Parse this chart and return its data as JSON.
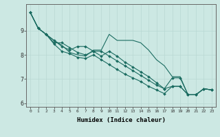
{
  "xlabel": "Humidex (Indice chaleur)",
  "background_color": "#cce8e3",
  "grid_color": "#b8d8d2",
  "line_color": "#1a6b60",
  "xlim": [
    -0.5,
    23.5
  ],
  "ylim": [
    5.85,
    10.1
  ],
  "yticks": [
    6,
    7,
    8,
    9
  ],
  "xticks": [
    0,
    1,
    2,
    3,
    4,
    5,
    6,
    7,
    8,
    9,
    10,
    11,
    12,
    13,
    14,
    15,
    16,
    17,
    18,
    19,
    20,
    21,
    22,
    23
  ],
  "lines": [
    {
      "y": [
        9.75,
        9.1,
        8.85,
        8.6,
        8.4,
        8.1,
        8.0,
        7.95,
        8.2,
        8.2,
        8.85,
        8.6,
        8.6,
        8.6,
        8.5,
        8.2,
        7.8,
        7.55,
        7.1,
        7.1,
        6.35,
        6.35,
        6.6,
        6.55
      ],
      "markers": false
    },
    {
      "y": [
        9.75,
        9.1,
        8.85,
        8.6,
        8.35,
        8.2,
        8.35,
        8.35,
        8.15,
        7.95,
        8.15,
        7.95,
        7.7,
        7.5,
        7.3,
        7.1,
        6.85,
        6.6,
        6.7,
        6.7,
        6.35,
        6.35,
        6.6,
        6.55
      ],
      "markers": true
    },
    {
      "y": [
        9.75,
        9.1,
        8.85,
        8.5,
        8.5,
        8.3,
        8.1,
        8.0,
        8.15,
        8.15,
        7.95,
        7.75,
        7.55,
        7.35,
        7.15,
        6.95,
        6.75,
        6.6,
        7.05,
        7.05,
        6.35,
        6.35,
        6.6,
        6.55
      ],
      "markers": true
    },
    {
      "y": [
        9.75,
        9.1,
        8.85,
        8.45,
        8.15,
        8.05,
        7.9,
        7.85,
        8.0,
        7.8,
        7.6,
        7.4,
        7.2,
        7.05,
        6.9,
        6.7,
        6.55,
        6.4,
        6.7,
        6.7,
        6.35,
        6.35,
        6.6,
        6.55
      ],
      "markers": true
    }
  ]
}
